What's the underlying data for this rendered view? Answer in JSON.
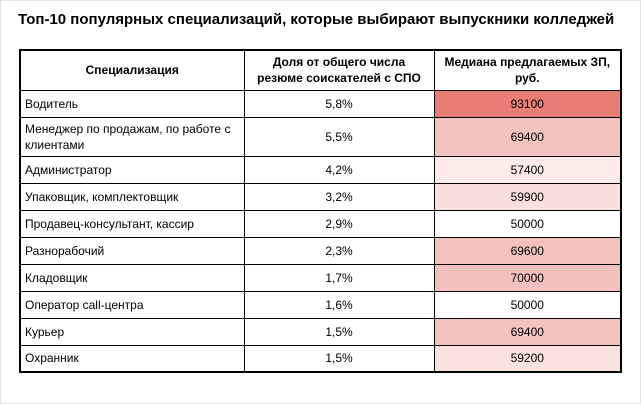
{
  "page": {
    "title": "Топ-10 популярных специализаций, которые выбирают выпускники колледжей"
  },
  "table": {
    "headers": {
      "specialization": "Специализация",
      "share": "Доля от общего числа резюме соискателей с СПО",
      "salary": "Медиана предлагаемых ЗП, руб."
    },
    "rows": [
      {
        "specialization": "Водитель",
        "share": "5,8%",
        "salary": "93100",
        "salary_bg": "#e87d76"
      },
      {
        "specialization": "Менеджер по продажам, по работе с клиентами",
        "share": "5,5%",
        "salary": "69400",
        "salary_bg": "#f3c3bf"
      },
      {
        "specialization": "Администратор",
        "share": "4,2%",
        "salary": "57400",
        "salary_bg": "#fcebe9"
      },
      {
        "specialization": "Упаковщик, комплектовщик",
        "share": "3,2%",
        "salary": "59900",
        "salary_bg": "#fbdfdc"
      },
      {
        "specialization": "Продавец-консультант, кассир",
        "share": "2,9%",
        "salary": "50000",
        "salary_bg": "#ffffff"
      },
      {
        "specialization": "Разнорабочий",
        "share": "2,3%",
        "salary": "69600",
        "salary_bg": "#f3c2be"
      },
      {
        "specialization": "Кладовщик",
        "share": "1,7%",
        "salary": "70000",
        "salary_bg": "#f3c1bd"
      },
      {
        "specialization": "Оператор call-центра",
        "share": "1,6%",
        "salary": "50000",
        "salary_bg": "#ffffff"
      },
      {
        "specialization": "Курьер",
        "share": "1,5%",
        "salary": "69400",
        "salary_bg": "#f3c3bf"
      },
      {
        "specialization": "Охранник",
        "share": "1,5%",
        "salary": "59200",
        "salary_bg": "#fae2df"
      }
    ]
  },
  "colors": {
    "salary_scale_max_fill": "#e87d76",
    "salary_scale_min_fill": "#ffffff",
    "table_border": "#000000",
    "text": "#000000"
  },
  "chart_data": {
    "type": "table",
    "title": "Топ-10 популярных специализаций, которые выбирают выпускники колледжей",
    "columns": [
      "Специализация",
      "Доля от общего числа резюме соискателей с СПО",
      "Медиана предлагаемых ЗП, руб."
    ],
    "rows": [
      [
        "Водитель",
        "5,8%",
        93100
      ],
      [
        "Менеджер по продажам, по работе с клиентами",
        "5,5%",
        69400
      ],
      [
        "Администратор",
        "4,2%",
        57400
      ],
      [
        "Упаковщик, комплектовщик",
        "3,2%",
        59900
      ],
      [
        "Продавец-консультант, кассир",
        "2,9%",
        50000
      ],
      [
        "Разнорабочий",
        "2,3%",
        69600
      ],
      [
        "Кладовщик",
        "1,7%",
        70000
      ],
      [
        "Оператор call-центра",
        "1,6%",
        50000
      ],
      [
        "Курьер",
        "1,5%",
        69400
      ],
      [
        "Охранник",
        "1,5%",
        59200
      ]
    ],
    "share_values_pct": [
      5.8,
      5.5,
      4.2,
      3.2,
      2.9,
      2.3,
      1.7,
      1.6,
      1.5,
      1.5
    ],
    "salary_values_rub": [
      93100,
      69400,
      57400,
      59900,
      50000,
      69600,
      70000,
      50000,
      69400,
      59200
    ],
    "layout_hints": {
      "salary_column_shading": "white-to-red color scale proportional to salary value",
      "salary_scale_min": 50000,
      "salary_scale_max": 93100,
      "grid": true,
      "header_bold": true
    }
  }
}
